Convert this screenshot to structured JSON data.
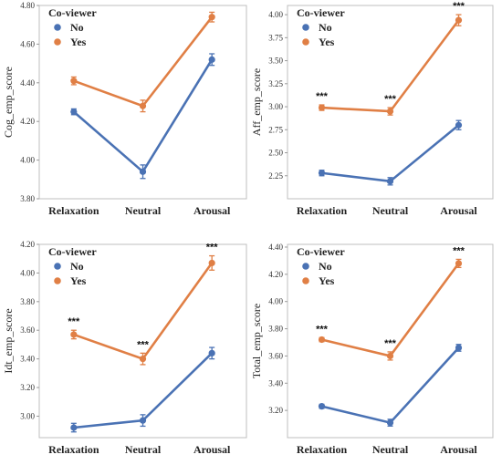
{
  "colors": {
    "No": "#4a72b4",
    "Yes": "#e07f45",
    "grid": "#d9d9d9",
    "frame": "#bfbfbf"
  },
  "legend": {
    "title": "Co-viewer",
    "items": [
      "No",
      "Yes"
    ]
  },
  "chart_data": [
    {
      "type": "line",
      "categories": [
        "Relaxation",
        "Neutral",
        "Arousal"
      ],
      "ylabel": "Cog_emp_score",
      "ylim": [
        3.8,
        4.8
      ],
      "yticks": [
        "3.80",
        "4.00",
        "4.20",
        "4.40",
        "4.60",
        "4.80"
      ],
      "grid": false,
      "legend_position": "top-left",
      "series": [
        {
          "name": "No",
          "values": [
            4.25,
            3.94,
            4.52
          ],
          "errors": [
            0.015,
            0.035,
            0.03
          ]
        },
        {
          "name": "Yes",
          "values": [
            4.41,
            4.28,
            4.74
          ],
          "errors": [
            0.02,
            0.03,
            0.025
          ]
        }
      ],
      "annotations": [
        "",
        "",
        ""
      ]
    },
    {
      "type": "line",
      "categories": [
        "Relaxation",
        "Neutral",
        "Arousal"
      ],
      "ylabel": "Aff_emp_score",
      "ylim": [
        2.0,
        4.1
      ],
      "yticks": [
        "2.25",
        "2.50",
        "2.75",
        "3.00",
        "3.25",
        "3.50",
        "3.75",
        "4.00"
      ],
      "grid": false,
      "legend_position": "top-left",
      "series": [
        {
          "name": "No",
          "values": [
            2.28,
            2.19,
            2.8
          ],
          "errors": [
            0.03,
            0.04,
            0.05
          ]
        },
        {
          "name": "Yes",
          "values": [
            2.99,
            2.95,
            3.94
          ],
          "errors": [
            0.03,
            0.04,
            0.06
          ]
        }
      ],
      "annotations": [
        "***",
        "***",
        "***"
      ]
    },
    {
      "type": "line",
      "categories": [
        "Relaxation",
        "Neutral",
        "Arousal"
      ],
      "ylabel": "Idt_emp_score",
      "ylim": [
        2.85,
        4.2
      ],
      "yticks": [
        "3.00",
        "3.20",
        "3.40",
        "3.60",
        "3.80",
        "4.00",
        "4.20"
      ],
      "grid": false,
      "legend_position": "top-left",
      "series": [
        {
          "name": "No",
          "values": [
            2.92,
            2.97,
            3.44
          ],
          "errors": [
            0.03,
            0.04,
            0.04
          ]
        },
        {
          "name": "Yes",
          "values": [
            3.57,
            3.4,
            4.07
          ],
          "errors": [
            0.03,
            0.04,
            0.05
          ]
        }
      ],
      "annotations": [
        "***",
        "***",
        "***"
      ]
    },
    {
      "type": "line",
      "categories": [
        "Relaxation",
        "Neutral",
        "Arousal"
      ],
      "ylabel": "Total_emp_score",
      "ylim": [
        3.0,
        4.42
      ],
      "yticks": [
        "3.20",
        "3.40",
        "3.60",
        "3.80",
        "4.00",
        "4.20",
        "4.40"
      ],
      "grid": false,
      "legend_position": "top-left",
      "series": [
        {
          "name": "No",
          "values": [
            3.23,
            3.11,
            3.66
          ],
          "errors": [
            0.015,
            0.025,
            0.025
          ]
        },
        {
          "name": "Yes",
          "values": [
            3.72,
            3.6,
            4.28
          ],
          "errors": [
            0.015,
            0.03,
            0.03
          ]
        }
      ],
      "annotations": [
        "***",
        "***",
        "***"
      ]
    }
  ]
}
